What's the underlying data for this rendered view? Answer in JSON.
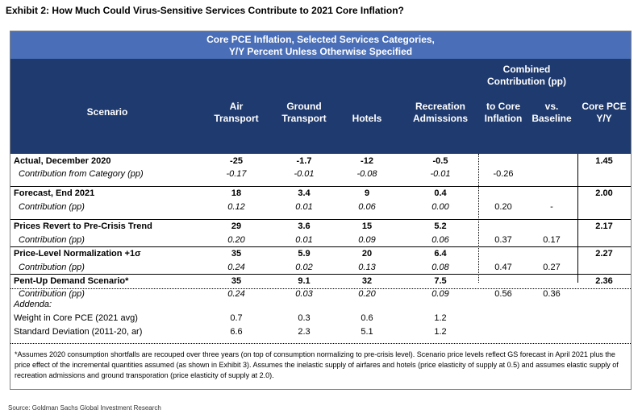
{
  "exhibit_title": "Exhibit 2: How Much Could Virus-Sensitive Services Contribute to 2021 Core Inflation?",
  "banner": {
    "line1": "Core PCE Inflation, Selected Services Categories,",
    "line2": "Y/Y Percent Unless Otherwise Specified"
  },
  "colors": {
    "banner": "#4a6fb8",
    "header": "#1f3a6e",
    "header_text": "#ffffff"
  },
  "chart_data": {
    "type": "table",
    "title": "Core PCE Inflation, Selected Services Categories, Y/Y Percent Unless Otherwise Specified",
    "headers": {
      "scenario": "Scenario",
      "air": [
        "Air",
        "Transport"
      ],
      "ground": [
        "Ground",
        "Transport"
      ],
      "hotels": "Hotels",
      "recreation": [
        "Recreation",
        "Admissions"
      ],
      "combined": [
        "Combined",
        "Contribution (pp)"
      ],
      "to_core": [
        "to Core",
        "Inflation"
      ],
      "vs_baseline": [
        "vs.",
        "Baseline"
      ],
      "core_pce": [
        "Core PCE",
        "Y/Y"
      ]
    },
    "rows": [
      {
        "label": "Actual, December 2020",
        "air": "-25",
        "ground": "-1.7",
        "hotels": "-12",
        "recreation": "-0.5",
        "to_core": "",
        "vs_baseline": "",
        "core_pce": "1.45"
      },
      {
        "label": "Contribution from Category (pp)",
        "air": "-0.17",
        "ground": "-0.01",
        "hotels": "-0.08",
        "recreation": "-0.01",
        "to_core": "-0.26",
        "vs_baseline": "",
        "core_pce": ""
      },
      {
        "label": "Forecast, End 2021",
        "air": "18",
        "ground": "3.4",
        "hotels": "9",
        "recreation": "0.4",
        "to_core": "",
        "vs_baseline": "",
        "core_pce": "2.00"
      },
      {
        "label": "Contribution (pp)",
        "air": "0.12",
        "ground": "0.01",
        "hotels": "0.06",
        "recreation": "0.00",
        "to_core": "0.20",
        "vs_baseline": "-",
        "core_pce": ""
      },
      {
        "label": "Prices Revert to Pre-Crisis Trend",
        "air": "29",
        "ground": "3.6",
        "hotels": "15",
        "recreation": "5.2",
        "to_core": "",
        "vs_baseline": "",
        "core_pce": "2.17"
      },
      {
        "label": "Contribution (pp)",
        "air": "0.20",
        "ground": "0.01",
        "hotels": "0.09",
        "recreation": "0.06",
        "to_core": "0.37",
        "vs_baseline": "0.17",
        "core_pce": ""
      },
      {
        "label": "Price-Level Normalization +1σ",
        "air": "35",
        "ground": "5.9",
        "hotels": "20",
        "recreation": "6.4",
        "to_core": "",
        "vs_baseline": "",
        "core_pce": "2.27"
      },
      {
        "label": "Contribution (pp)",
        "air": "0.24",
        "ground": "0.02",
        "hotels": "0.13",
        "recreation": "0.08",
        "to_core": "0.47",
        "vs_baseline": "0.27",
        "core_pce": ""
      },
      {
        "label": "Pent-Up Demand Scenario*",
        "air": "35",
        "ground": "9.1",
        "hotels": "32",
        "recreation": "7.5",
        "to_core": "",
        "vs_baseline": "",
        "core_pce": "2.36"
      },
      {
        "label": "Contribution (pp)",
        "air": "0.24",
        "ground": "0.03",
        "hotels": "0.20",
        "recreation": "0.09",
        "to_core": "0.56",
        "vs_baseline": "0.36",
        "core_pce": ""
      }
    ],
    "addenda": {
      "label": "Addenda:",
      "rows": [
        {
          "label": "Weight in Core PCE (2021 avg)",
          "air": "0.7",
          "ground": "0.3",
          "hotels": "0.6",
          "recreation": "1.2"
        },
        {
          "label": "Standard Deviation (2011-20, ar)",
          "air": "6.6",
          "ground": "2.3",
          "hotels": "5.1",
          "recreation": "1.2"
        }
      ]
    }
  },
  "footnote": "*Assumes 2020 consumption shortfalls are recouped over three years (on top of consumption normalizing  to pre-crisis level). Scenario price levels reflect GS forecast in April 2021 plus the price effect of the incremental quantities assumed (as shown in Exhibit 3). Assumes the inelastic supply of airfares and hotels (price elasticity of supply at 0.5) and assumes elastic supply of recreation admissions and ground transporation (price elasticity of supply at 2.0).",
  "source": "Source: Goldman Sachs Global Investment Research"
}
